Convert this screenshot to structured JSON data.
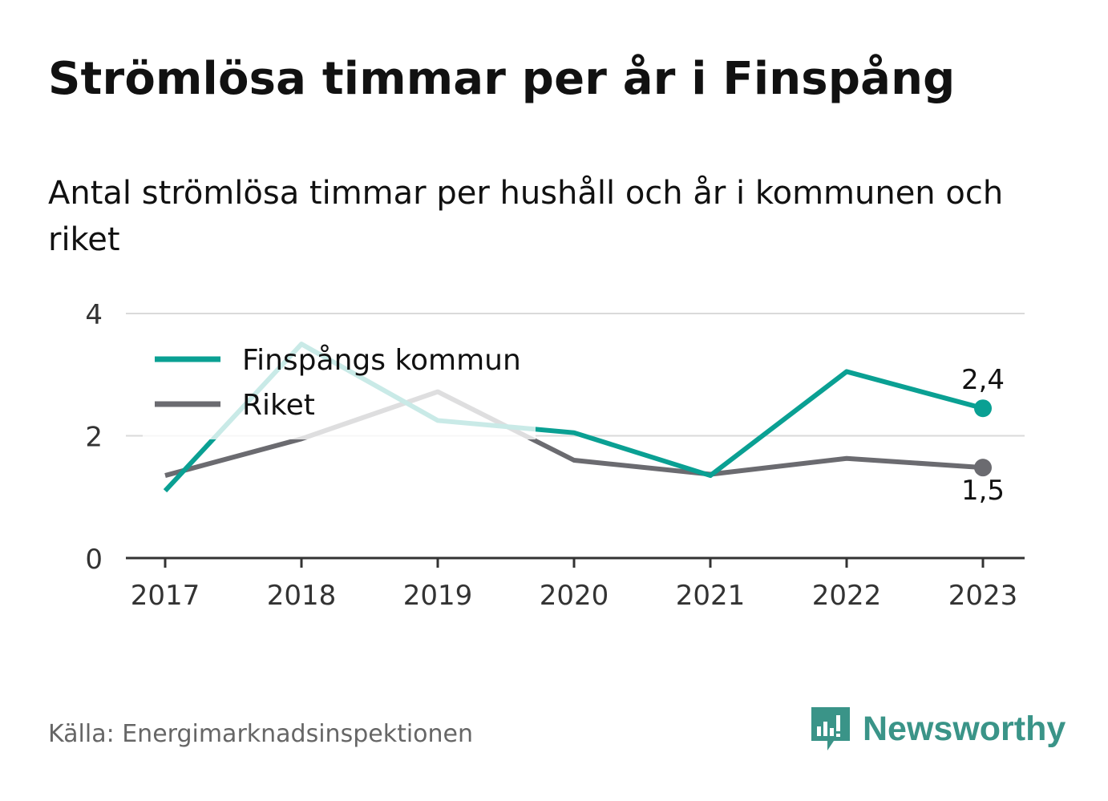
{
  "title": "Strömlösa timmar per år i Finspång",
  "subtitle": "Antal strömlösa timmar per hushåll och år i kommunen och riket",
  "source": "Källa: Energimarknadsinspektionen",
  "brand": {
    "name": "Newsworthy",
    "icon": "newsworthy-logo-icon",
    "color": "#3a9488"
  },
  "chart_data": {
    "type": "line",
    "x": [
      "2017",
      "2018",
      "2019",
      "2020",
      "2021",
      "2022",
      "2023"
    ],
    "ylim": [
      0,
      4
    ],
    "yticks": [
      "0",
      "2",
      "4"
    ],
    "grid": true,
    "legend": "top-left",
    "series": [
      {
        "name": "Finspångs kommun",
        "color": "#0aa093",
        "values": [
          1.1,
          3.5,
          2.25,
          2.05,
          1.35,
          3.05,
          2.45
        ],
        "end_label": "2,4"
      },
      {
        "name": "Riket",
        "color": "#6b6b70",
        "values": [
          1.35,
          1.95,
          2.72,
          1.6,
          1.37,
          1.63,
          1.48
        ],
        "end_label": "1,5"
      }
    ]
  }
}
